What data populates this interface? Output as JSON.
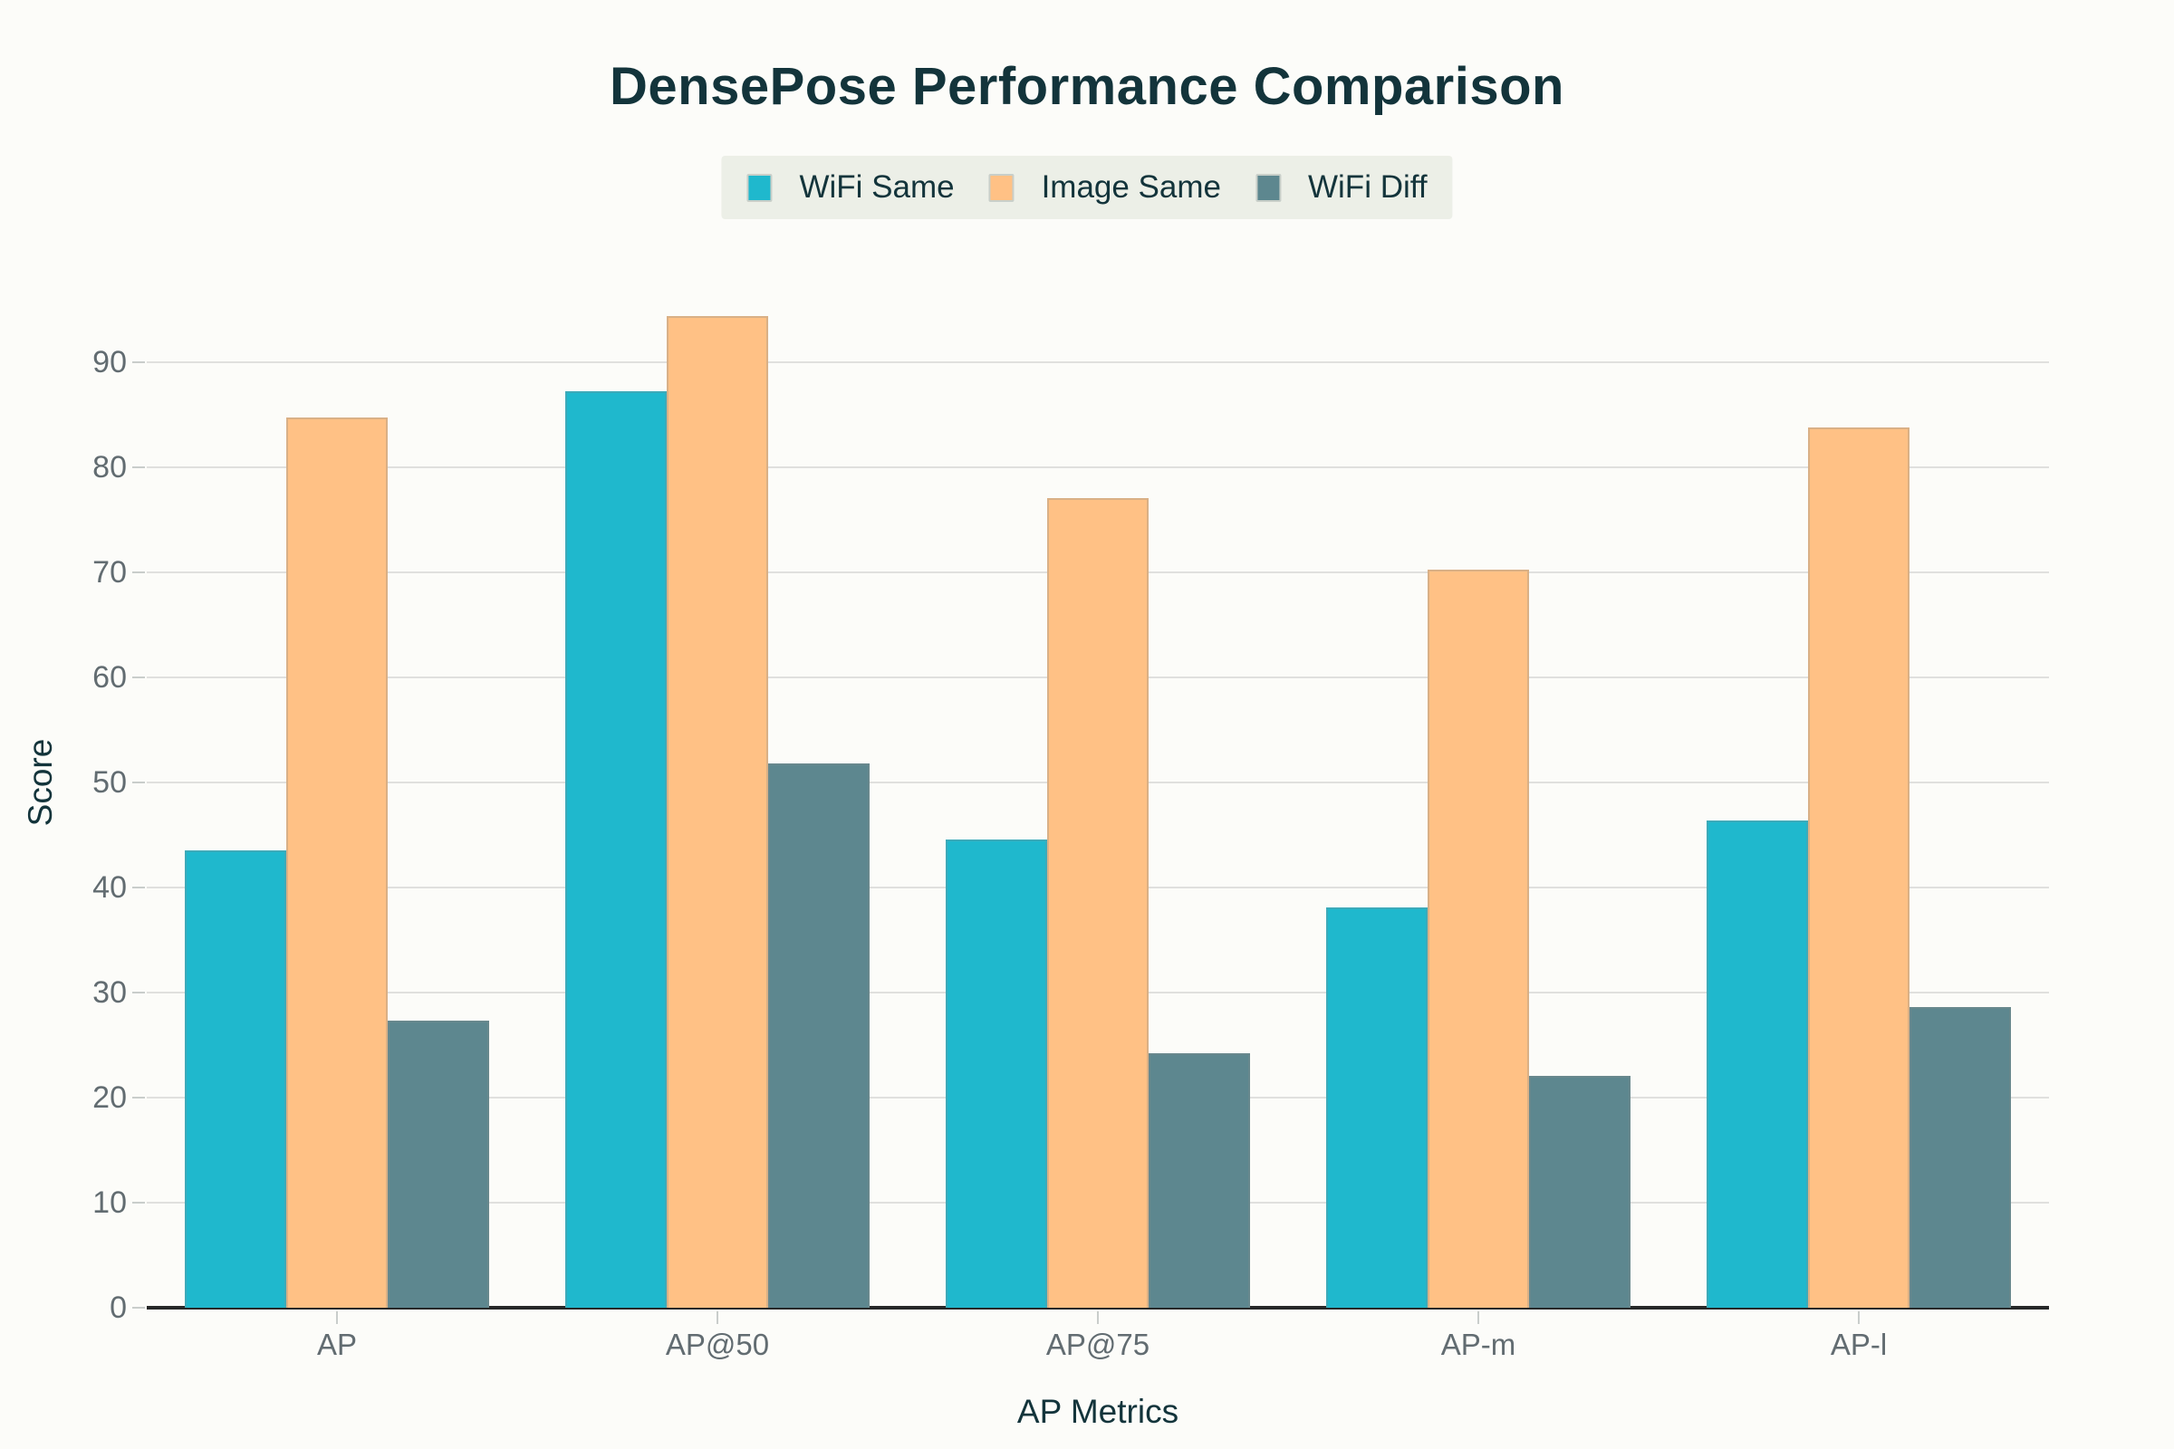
{
  "page": {
    "background": "#FCFCF9",
    "text_dark": "#13343B",
    "text_gray": "#626C71",
    "gridline_color": "#E0E0DE",
    "axis_line_color": "#262828",
    "legend_background": "#ECEFE7"
  },
  "chart_data": {
    "type": "bar",
    "title": "DensePose Performance Comparison",
    "xlabel": "AP Metrics",
    "ylabel": "Score",
    "categories": [
      "AP",
      "AP@50",
      "AP@75",
      "AP-m",
      "AP-l"
    ],
    "series": [
      {
        "name": "WiFi Same",
        "color": "#1FB8CD",
        "values": [
          43.5,
          87.2,
          44.6,
          38.1,
          46.4
        ]
      },
      {
        "name": "Image Same",
        "color": "#FFC185",
        "values": [
          84.7,
          94.4,
          77.1,
          70.3,
          83.8
        ]
      },
      {
        "name": "WiFi Diff",
        "color": "#5D878F",
        "values": [
          27.3,
          51.8,
          24.2,
          22.1,
          28.6
        ]
      }
    ],
    "ylim": [
      0,
      100
    ],
    "y_ticks": [
      0,
      10,
      20,
      30,
      40,
      50,
      60,
      70,
      80,
      90
    ],
    "grid": true,
    "legend_position": "top-center"
  }
}
